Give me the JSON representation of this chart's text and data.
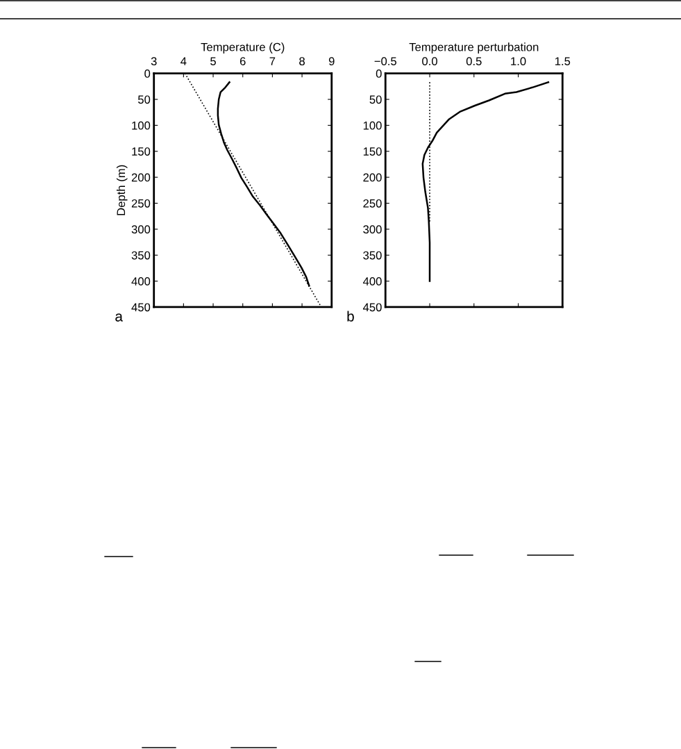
{
  "chart_data": [
    {
      "type": "line",
      "xlabel": "Temperature (C)",
      "ylabel": "Depth (m)",
      "xlim": [
        3,
        9
      ],
      "xticks": [
        3,
        4,
        5,
        6,
        7,
        8,
        9
      ],
      "ylim": [
        450,
        0
      ],
      "yticks": [
        0,
        50,
        100,
        150,
        200,
        250,
        300,
        350,
        400,
        450
      ],
      "grid": false,
      "annotations": [
        "a"
      ],
      "series": [
        {
          "color": "#000000",
          "line_style": "solid",
          "x": [
            5.55,
            5.41,
            5.25,
            5.19,
            5.16,
            5.16,
            5.19,
            5.27,
            5.37,
            5.48,
            5.64,
            5.8,
            5.95,
            6.15,
            6.34,
            6.58,
            6.81,
            7.05,
            7.28,
            7.52,
            7.75,
            7.98,
            8.14,
            8.24
          ],
          "values": [
            17,
            27,
            36,
            50,
            68,
            81,
            99,
            116,
            134,
            148,
            165,
            183,
            201,
            219,
            237,
            254,
            272,
            290,
            308,
            330,
            352,
            374,
            392,
            409
          ]
        },
        {
          "color": "#000000",
          "line_style": "dotted",
          "x": [
            4.05,
            8.65
          ],
          "values": [
            0,
            450
          ]
        }
      ]
    },
    {
      "type": "line",
      "xlabel": "Temperature perturbation",
      "xlim": [
        -0.5,
        1.5
      ],
      "xticks": [
        {
          "value": -0.5,
          "label": "−0.5"
        },
        {
          "value": 0,
          "label": "0.0"
        },
        0.5,
        {
          "value": 1,
          "label": "1.0"
        },
        1.5
      ],
      "ylim": [
        450,
        0
      ],
      "yticks": [
        0,
        50,
        100,
        150,
        200,
        250,
        300,
        350,
        400,
        450
      ],
      "grid": false,
      "annotations": [
        "b"
      ],
      "series": [
        {
          "color": "#000000",
          "line_style": "solid",
          "x": [
            1.34,
            1.16,
            0.98,
            0.85,
            0.67,
            0.51,
            0.34,
            0.22,
            0.15,
            0.08,
            0.03,
            -0.02,
            -0.06,
            -0.08,
            -0.07,
            -0.05,
            -0.02,
            -0.01,
            0.0,
            0.0
          ],
          "values": [
            17,
            27,
            36,
            39,
            52,
            62,
            74,
            88,
            101,
            114,
            130,
            143,
            157,
            174,
            201,
            228,
            259,
            285,
            326,
            400
          ]
        },
        {
          "color": "#000000",
          "line_style": "dotted",
          "x": [
            0.0,
            0.0
          ],
          "values": [
            17,
            285
          ]
        }
      ]
    }
  ]
}
